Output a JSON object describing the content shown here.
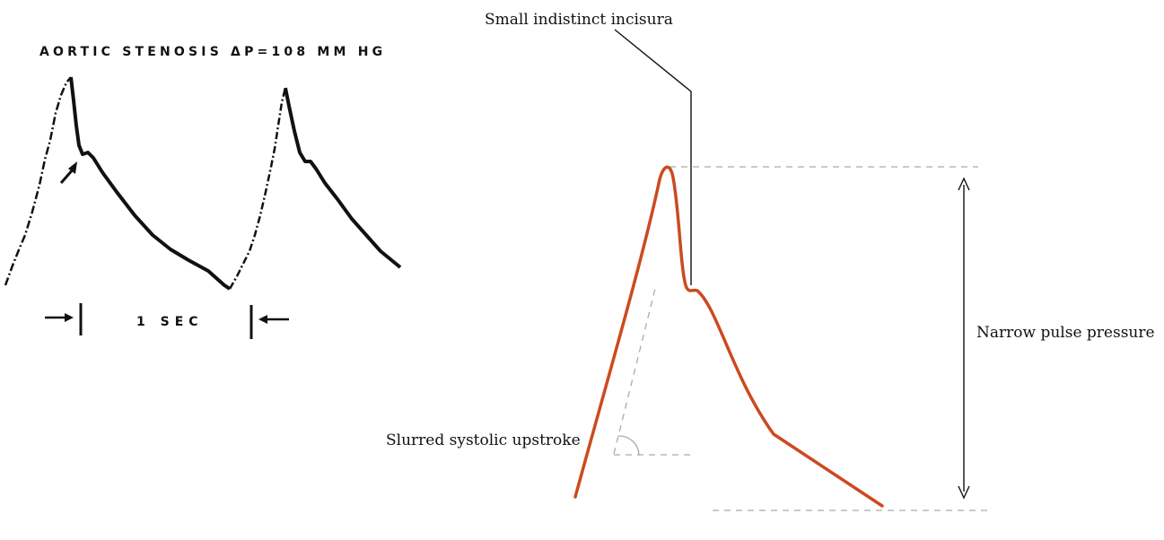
{
  "tracing": {
    "title": "AORTIC STENOSIS  ΔP=108 MM HG",
    "time_scale_label": "1 SEC"
  },
  "schematic": {
    "incisura_label": "Small indistinct incisura",
    "upstroke_label": "Slurred systolic upstroke",
    "pulse_pressure_label": "Narrow pulse pressure"
  },
  "colors": {
    "waveform": "#cc4a1f",
    "tracing": "#111111",
    "guide_lines": "#aaaaaa"
  }
}
